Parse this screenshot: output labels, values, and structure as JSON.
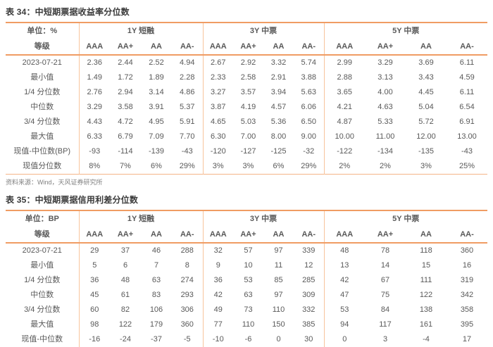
{
  "colors": {
    "accent_rule": "#f09c63",
    "accent_rule_light": "#f8c49c",
    "body_text": "#595959",
    "title_text": "#3a3a3a",
    "negative_value": "#fb4343",
    "source_text": "#7f7f7f",
    "background": "#ffffff"
  },
  "tables": [
    {
      "title": "表 34：中短期票据收益率分位数",
      "unit": "单位：%",
      "level": "等级",
      "groups": [
        {
          "label": "1Y 短融",
          "cols": [
            "AAA",
            "AA+",
            "AA",
            "AA-"
          ]
        },
        {
          "label": "3Y 中票",
          "cols": [
            "AAA",
            "AA+",
            "AA",
            "AA-"
          ]
        },
        {
          "label": "5Y 中票",
          "cols": [
            "AAA",
            "AA+",
            "AA",
            "AA-"
          ]
        }
      ],
      "rows": [
        {
          "label": "2023-07-21",
          "values": [
            "2.36",
            "2.44",
            "2.52",
            "4.94",
            "2.67",
            "2.92",
            "3.32",
            "5.74",
            "2.99",
            "3.29",
            "3.69",
            "6.11"
          ]
        },
        {
          "label": "最小值",
          "values": [
            "1.49",
            "1.72",
            "1.89",
            "2.28",
            "2.33",
            "2.58",
            "2.91",
            "3.88",
            "2.88",
            "3.13",
            "3.43",
            "4.59"
          ]
        },
        {
          "label": "1/4 分位数",
          "values": [
            "2.76",
            "2.94",
            "3.14",
            "4.86",
            "3.27",
            "3.57",
            "3.94",
            "5.63",
            "3.65",
            "4.00",
            "4.45",
            "6.11"
          ]
        },
        {
          "label": "中位数",
          "values": [
            "3.29",
            "3.58",
            "3.91",
            "5.37",
            "3.87",
            "4.19",
            "4.57",
            "6.06",
            "4.21",
            "4.63",
            "5.04",
            "6.54"
          ]
        },
        {
          "label": "3/4 分位数",
          "values": [
            "4.43",
            "4.72",
            "4.95",
            "5.91",
            "4.65",
            "5.03",
            "5.36",
            "6.50",
            "4.87",
            "5.33",
            "5.72",
            "6.91"
          ]
        },
        {
          "label": "最大值",
          "values": [
            "6.33",
            "6.79",
            "7.09",
            "7.70",
            "6.30",
            "7.00",
            "8.00",
            "9.00",
            "10.00",
            "11.00",
            "12.00",
            "13.00"
          ]
        },
        {
          "label": "现值-中位数(BP)",
          "values": [
            "-93",
            "-114",
            "-139",
            "-43",
            "-120",
            "-127",
            "-125",
            "-32",
            "-122",
            "-134",
            "-135",
            "-43"
          ]
        },
        {
          "label": "现值分位数",
          "values": [
            "8%",
            "7%",
            "6%",
            "29%",
            "3%",
            "3%",
            "6%",
            "29%",
            "2%",
            "2%",
            "3%",
            "25%"
          ]
        }
      ],
      "source": "资料来源：Wind，天风证券研究所"
    },
    {
      "title": "表 35：中短期票据信用利差分位数",
      "unit": "单位：BP",
      "level": "等级",
      "groups": [
        {
          "label": "1Y 短融",
          "cols": [
            "AAA",
            "AA+",
            "AA",
            "AA-"
          ]
        },
        {
          "label": "3Y 中票",
          "cols": [
            "AAA",
            "AA+",
            "AA",
            "AA-"
          ]
        },
        {
          "label": "5Y 中票",
          "cols": [
            "AAA",
            "AA+",
            "AA",
            "AA-"
          ]
        }
      ],
      "rows": [
        {
          "label": "2023-07-21",
          "values": [
            "29",
            "37",
            "46",
            "288",
            "32",
            "57",
            "97",
            "339",
            "48",
            "78",
            "118",
            "360"
          ]
        },
        {
          "label": "最小值",
          "values": [
            "5",
            "6",
            "7",
            "8",
            "9",
            "10",
            "11",
            "12",
            "13",
            "14",
            "15",
            "16"
          ]
        },
        {
          "label": "1/4 分位数",
          "values": [
            "36",
            "48",
            "63",
            "274",
            "36",
            "53",
            "85",
            "285",
            "42",
            "67",
            "111",
            "319"
          ]
        },
        {
          "label": "中位数",
          "values": [
            "45",
            "61",
            "83",
            "293",
            "42",
            "63",
            "97",
            "309",
            "47",
            "75",
            "122",
            "342"
          ]
        },
        {
          "label": "3/4 分位数",
          "values": [
            "60",
            "82",
            "106",
            "306",
            "49",
            "73",
            "110",
            "332",
            "53",
            "84",
            "138",
            "358"
          ]
        },
        {
          "label": "最大值",
          "values": [
            "98",
            "122",
            "179",
            "360",
            "77",
            "110",
            "150",
            "385",
            "94",
            "117",
            "161",
            "395"
          ]
        },
        {
          "label": "现值-中位数",
          "values": [
            "-16",
            "-24",
            "-37",
            "-5",
            "-10",
            "-6",
            "0",
            "30",
            "0",
            "3",
            "-4",
            "17"
          ]
        }
      ]
    }
  ]
}
